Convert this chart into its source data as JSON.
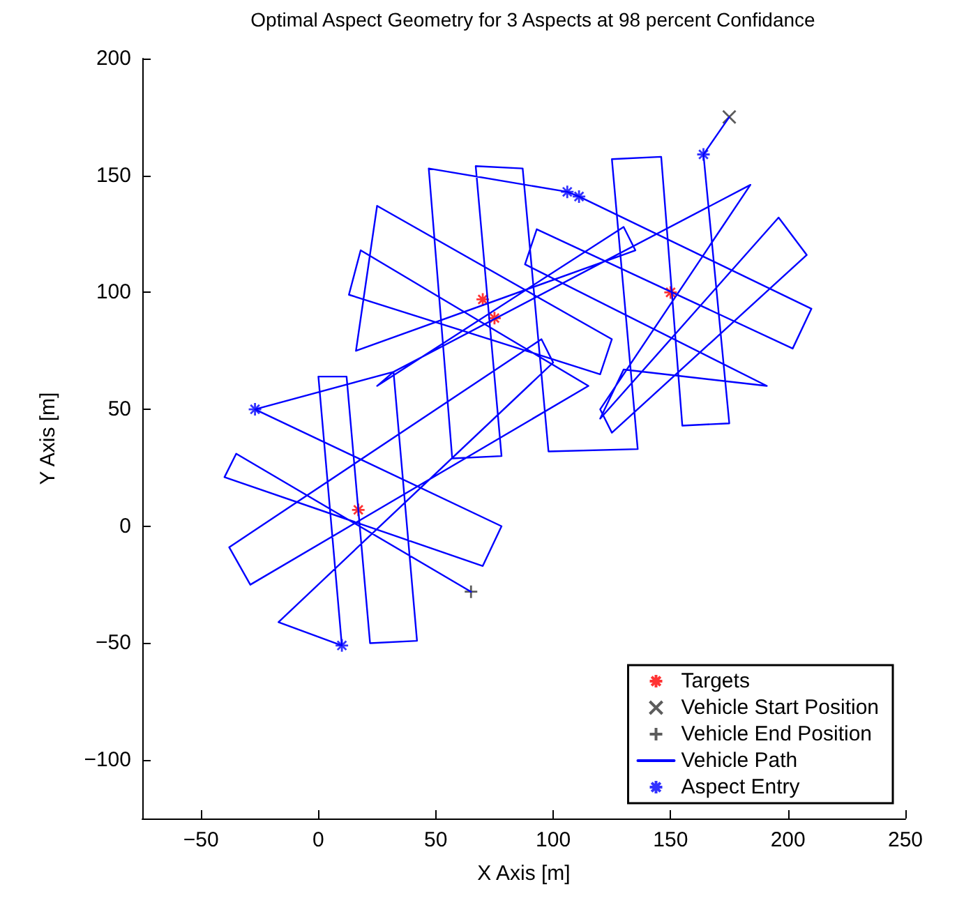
{
  "chart_data": {
    "type": "scatter",
    "title": "Optimal Aspect Geometry for 3 Aspects at 98 percent Confidance",
    "xlabel": "X Axis [m]",
    "ylabel": "Y Axis [m]",
    "xlim": [
      -75,
      250
    ],
    "ylim": [
      -125,
      200
    ],
    "xticks": [
      -50,
      0,
      50,
      100,
      150,
      200,
      250
    ],
    "yticks": [
      -100,
      -50,
      0,
      50,
      100,
      150,
      200
    ],
    "grid": false,
    "legend": "bottom right",
    "series": [
      {
        "name": "Targets",
        "marker": "cross",
        "color": "#ff0000",
        "x": [
          70,
          75,
          150,
          17
        ],
        "values": [
          97,
          89,
          100,
          7
        ]
      },
      {
        "name": "Vehicle Start Position",
        "marker": "cross",
        "color": "#333333",
        "x": [
          175
        ],
        "values": [
          175
        ]
      },
      {
        "name": "Vehicle End Position",
        "marker": "plus",
        "color": "#333333",
        "x": [
          65
        ],
        "values": [
          -28
        ]
      },
      {
        "name": "Vehicle Path",
        "type": "line",
        "marker": "none",
        "line_style": "solid",
        "color": "#0000ff",
        "x": [
          175,
          164,
          175,
          155,
          146,
          125,
          136,
          98,
          87,
          67,
          78,
          57,
          47,
          106,
          111,
          210,
          202,
          93,
          88,
          191,
          130,
          120,
          196,
          208,
          125,
          120,
          184,
          32,
          25,
          130,
          135,
          16,
          25,
          125,
          120,
          13,
          18,
          115,
          -29,
          -38,
          95,
          100,
          -17,
          10,
          0,
          12,
          22,
          42,
          32,
          -27,
          78,
          70,
          -40,
          -35,
          65
        ],
        "values": [
          175,
          159,
          44,
          43,
          158,
          157,
          33,
          32,
          153,
          154,
          30,
          29,
          153,
          143,
          141,
          93,
          76,
          127,
          112,
          60,
          67,
          46,
          132,
          116,
          40,
          50,
          146,
          66,
          60,
          128,
          118,
          75,
          137,
          80,
          65,
          99,
          118,
          60,
          -25,
          -9,
          80,
          70,
          -41,
          -51,
          64,
          64,
          -50,
          -49,
          66,
          50,
          0,
          -17,
          21,
          31,
          -28
        ]
      },
      {
        "name": "Aspect Entry",
        "marker": "cross",
        "color": "#0000ff",
        "x": [
          164,
          106,
          111,
          -27,
          10
        ],
        "values": [
          159,
          143,
          141,
          50,
          -51
        ]
      }
    ]
  }
}
